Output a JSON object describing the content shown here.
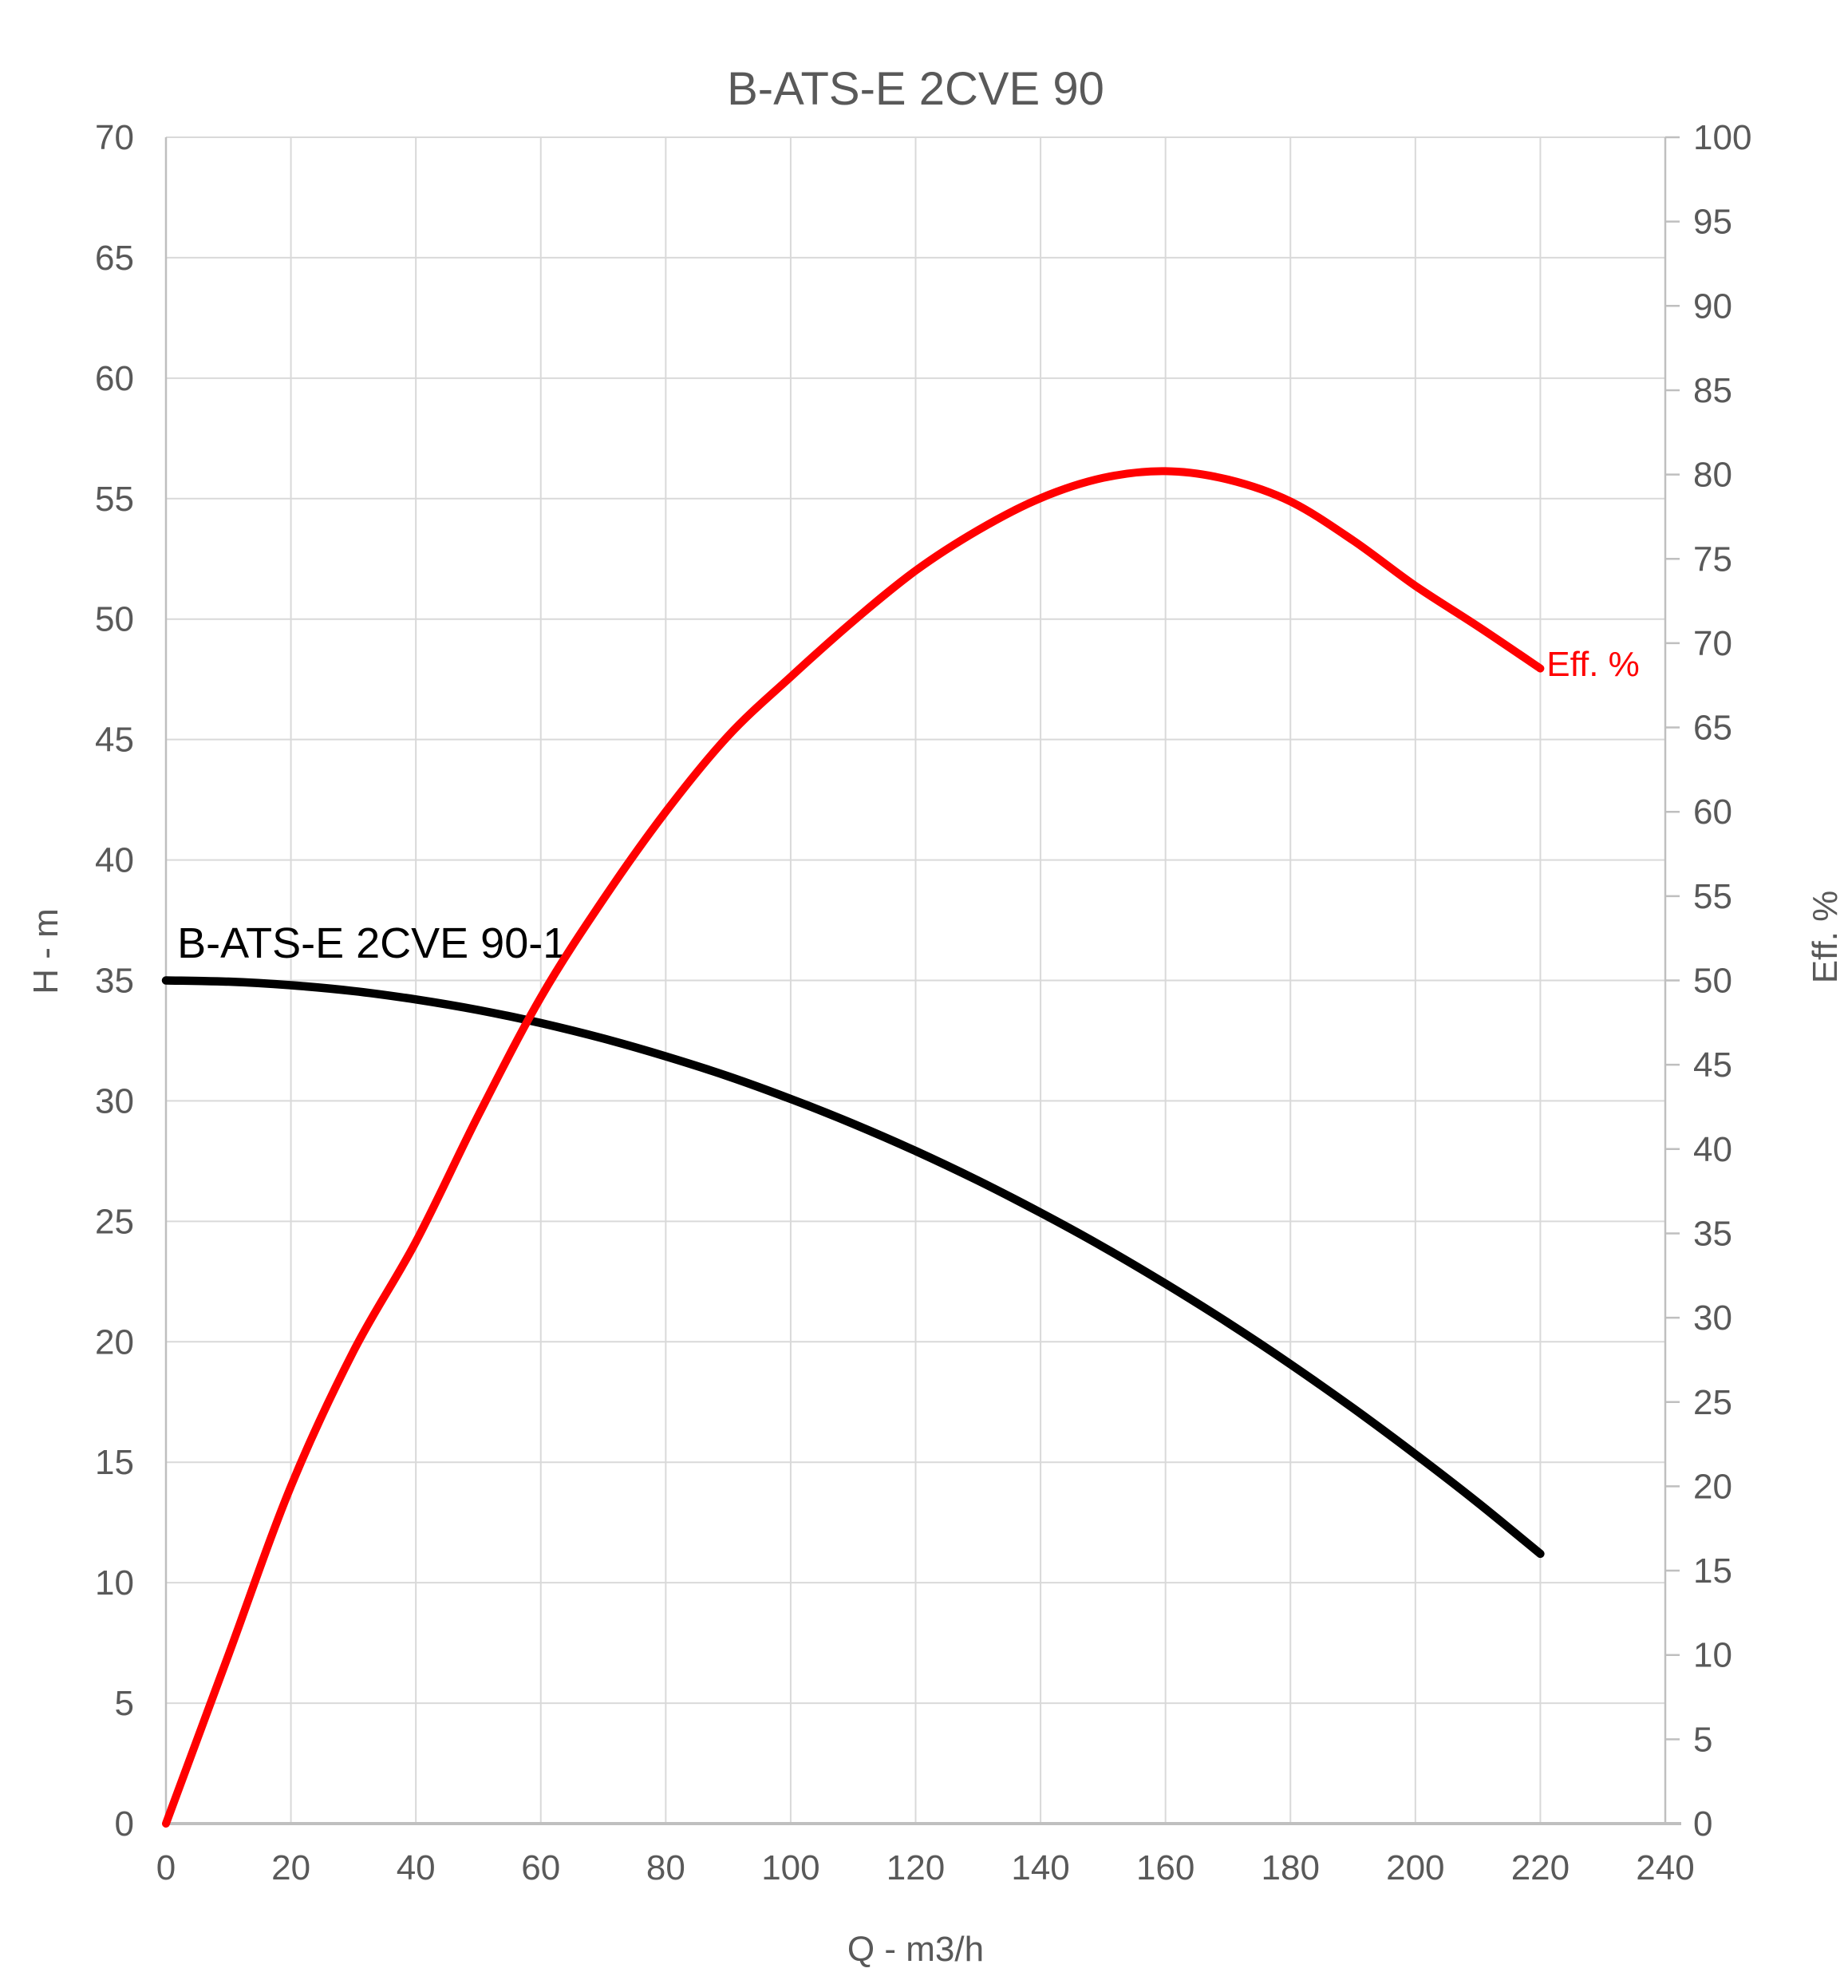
{
  "title": "B-ATS-E 2CVE 90",
  "colors": {
    "text": "#595959",
    "grid": "#D9D9D9",
    "axis": "#BFBFBF",
    "background": "#FFFFFF",
    "head_curve": "#000000",
    "efficiency_curve": "#FF0000"
  },
  "chart_data": {
    "type": "line",
    "title": "B-ATS-E 2CVE 90",
    "xlabel": "Q - m3/h",
    "ylabel_left": "H - m",
    "ylabel_right": "Eff. %",
    "x_axis": {
      "min": 0,
      "max": 240,
      "tick_step": 20,
      "ticks": [
        0,
        20,
        40,
        60,
        80,
        100,
        120,
        140,
        160,
        180,
        200,
        220,
        240
      ]
    },
    "y_axis_left": {
      "min": 0,
      "max": 70,
      "tick_step": 5,
      "ticks": [
        70,
        65,
        60,
        55,
        50,
        45,
        40,
        35,
        30,
        25,
        20,
        15,
        10,
        5,
        0
      ]
    },
    "y_axis_right": {
      "min": 0,
      "max": 100,
      "tick_step": 5,
      "ticks": [
        100,
        95,
        90,
        85,
        80,
        75,
        70,
        65,
        60,
        55,
        50,
        45,
        40,
        35,
        30,
        25,
        20,
        15,
        10,
        5,
        0
      ]
    },
    "grid": {
      "horizontal": true,
      "vertical": true,
      "horizontal_follows": "left_axis_5_steps",
      "vertical_follows": "x_axis_20_steps"
    },
    "legend_position": "inline-curve-labels",
    "series": [
      {
        "name": "B-ATS-E 2CVE 90-1",
        "axis": "left",
        "color": "#000000",
        "label": {
          "text": "B-ATS-E 2CVE 90-1",
          "q": 1.8,
          "value": 35.95,
          "font_size": 54,
          "color": "#000000"
        },
        "points": [
          [
            0,
            35.0
          ],
          [
            10,
            34.95
          ],
          [
            20,
            34.8
          ],
          [
            30,
            34.56
          ],
          [
            40,
            34.21
          ],
          [
            50,
            33.77
          ],
          [
            60,
            33.23
          ],
          [
            70,
            32.59
          ],
          [
            80,
            31.85
          ],
          [
            90,
            31.02
          ],
          [
            100,
            30.08
          ],
          [
            110,
            29.05
          ],
          [
            120,
            27.92
          ],
          [
            130,
            26.69
          ],
          [
            140,
            25.36
          ],
          [
            150,
            23.94
          ],
          [
            160,
            22.41
          ],
          [
            170,
            20.79
          ],
          [
            180,
            19.07
          ],
          [
            190,
            17.25
          ],
          [
            200,
            15.33
          ],
          [
            210,
            13.32
          ],
          [
            220,
            11.2
          ]
        ]
      },
      {
        "name": "Eff. %",
        "axis": "right",
        "color": "#FF0000",
        "label": {
          "text": "Eff. %",
          "q": 221,
          "value": 68.05,
          "font_size": 44,
          "color": "#FF0000"
        },
        "points": [
          [
            0,
            0
          ],
          [
            10,
            10.0
          ],
          [
            20,
            20.0
          ],
          [
            30,
            28.0
          ],
          [
            40,
            34.5
          ],
          [
            50,
            42.0
          ],
          [
            60,
            49.0
          ],
          [
            70,
            54.8
          ],
          [
            80,
            60.0
          ],
          [
            90,
            64.5
          ],
          [
            100,
            68.0
          ],
          [
            110,
            71.3
          ],
          [
            120,
            74.3
          ],
          [
            130,
            76.7
          ],
          [
            140,
            78.6
          ],
          [
            150,
            79.8
          ],
          [
            160,
            80.2
          ],
          [
            170,
            79.7
          ],
          [
            180,
            78.4
          ],
          [
            190,
            76.1
          ],
          [
            200,
            73.4
          ],
          [
            210,
            71.0
          ],
          [
            220,
            68.5
          ]
        ]
      }
    ]
  }
}
